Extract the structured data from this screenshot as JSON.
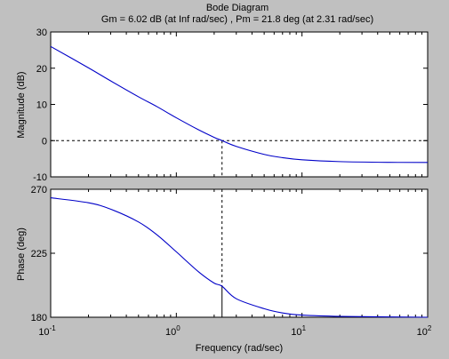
{
  "chart_data": [
    {
      "type": "line",
      "title": "Bode Diagram",
      "subtitle": "Gm = 6.02 dB (at Inf rad/sec) ,  Pm = 21.8 deg (at 2.31 rad/sec)",
      "ylabel": "Magnitude (dB)",
      "xscale": "log",
      "xlim": [
        0.1,
        100
      ],
      "ylim": [
        -10,
        30
      ],
      "yticks": [
        "30",
        "20",
        "10",
        "0",
        "-10"
      ],
      "series": [
        {
          "x": [
            0.1,
            0.2,
            0.3,
            0.5,
            0.7,
            1,
            1.5,
            2,
            2.31,
            3,
            5,
            7,
            10,
            20,
            50,
            100
          ],
          "y": [
            26,
            20.1,
            16.5,
            12.1,
            9.4,
            6.3,
            3.0,
            0.9,
            0.0,
            -1.6,
            -3.8,
            -4.7,
            -5.3,
            -5.8,
            -6.0,
            -6.02
          ]
        }
      ],
      "reference_lines": {
        "y": 0,
        "x": 2.31
      }
    },
    {
      "type": "line",
      "ylabel": "Phase (deg)",
      "xlabel": "Frequency  (rad/sec)",
      "xscale": "log",
      "xlim": [
        0.1,
        100
      ],
      "ylim": [
        180,
        270
      ],
      "yticks": [
        "270",
        "225",
        "180"
      ],
      "xticks": [
        "10",
        "10",
        "10",
        "10"
      ],
      "xtick_exponents": [
        "-1",
        "0",
        "1",
        "2"
      ],
      "series": [
        {
          "x": [
            0.1,
            0.2,
            0.3,
            0.5,
            0.7,
            1,
            1.5,
            2,
            2.31,
            3,
            5,
            7,
            10,
            20,
            100
          ],
          "y": [
            264,
            260.5,
            256,
            247,
            238,
            226,
            212,
            204,
            201.8,
            193,
            186,
            183,
            181.5,
            180.6,
            180
          ]
        }
      ],
      "reference_lines": {
        "y": 180,
        "x": 2.31
      }
    }
  ]
}
